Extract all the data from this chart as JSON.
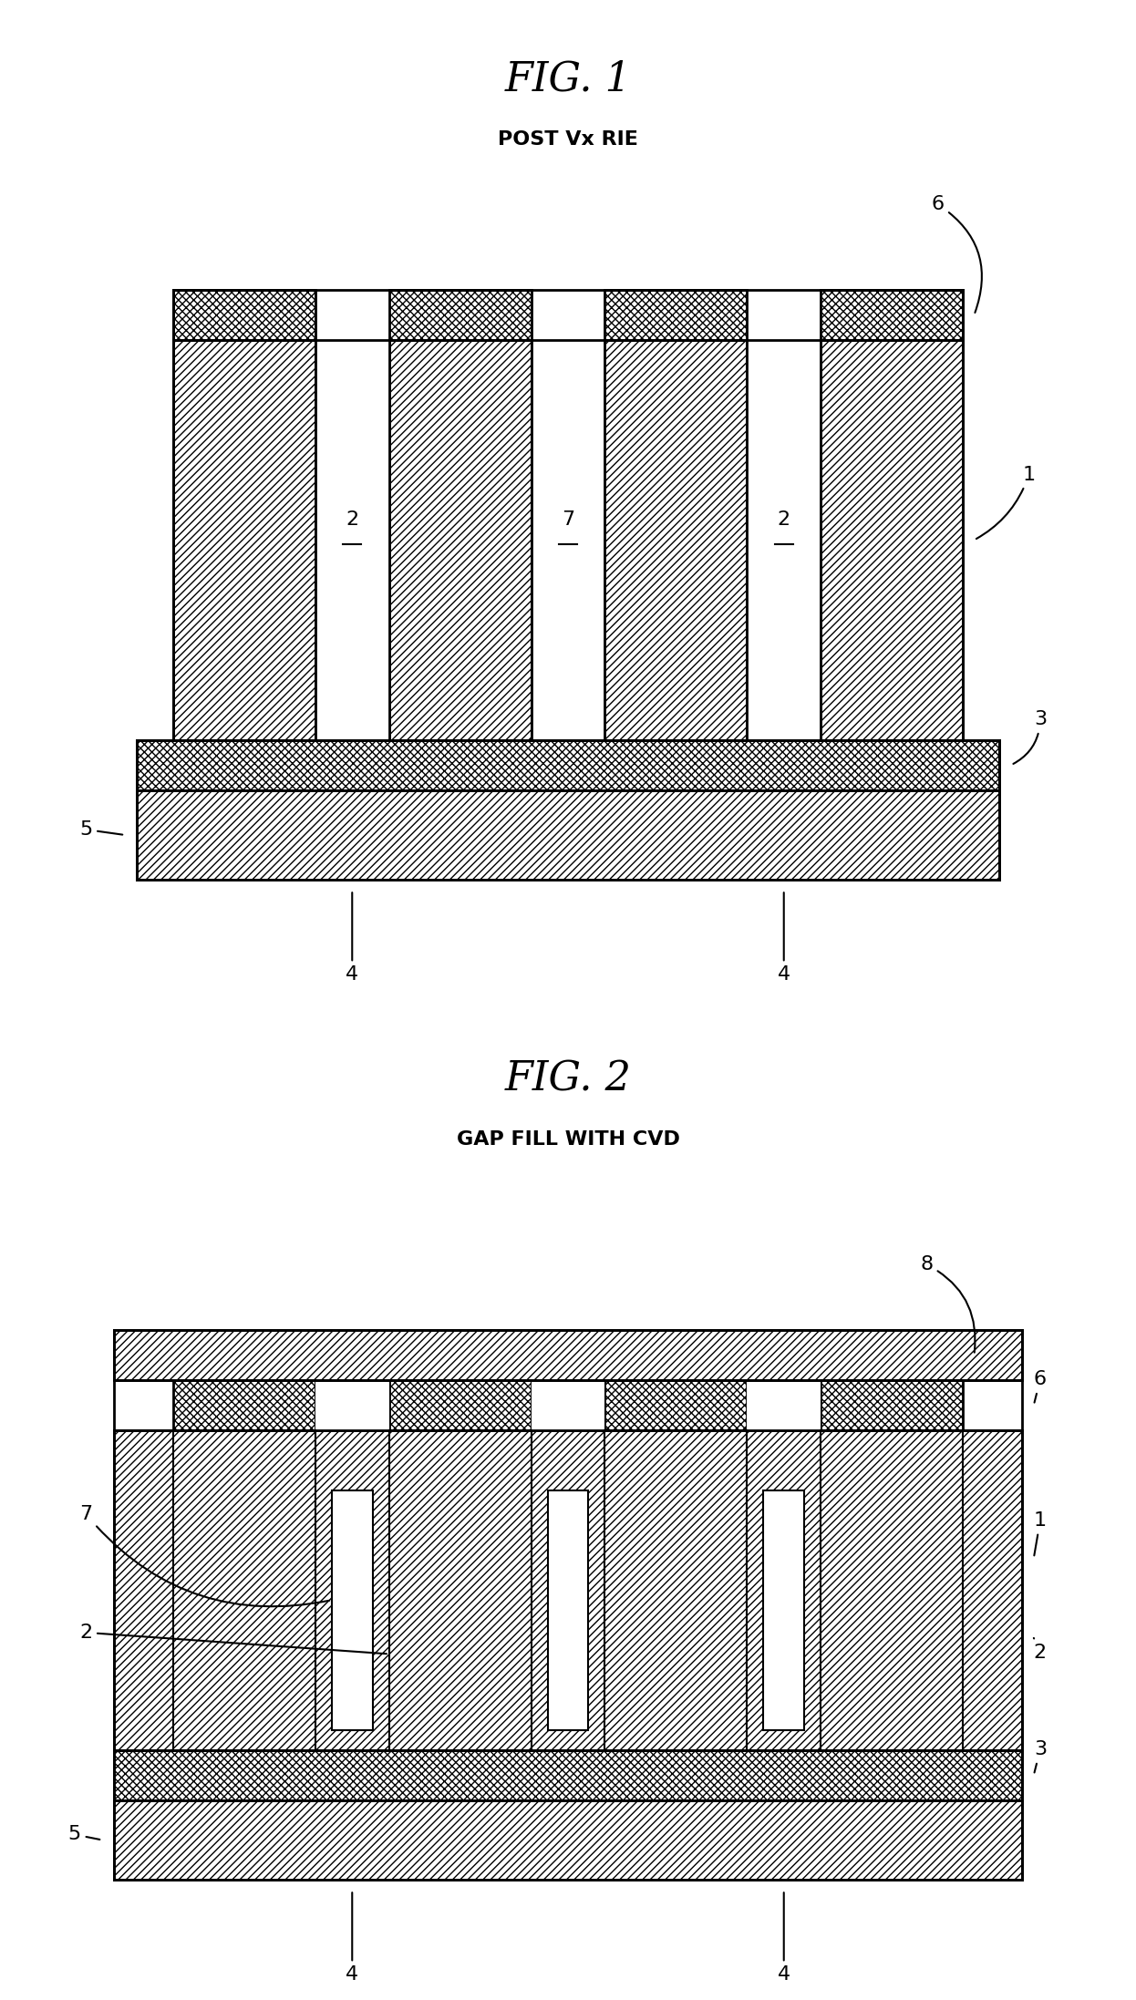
{
  "fig1_title": "FIG. 1",
  "fig1_subtitle": "POST Vx RIE",
  "fig2_title": "FIG. 2",
  "fig2_subtitle": "GAP FILL WITH CVD",
  "bg_color": "#ffffff"
}
